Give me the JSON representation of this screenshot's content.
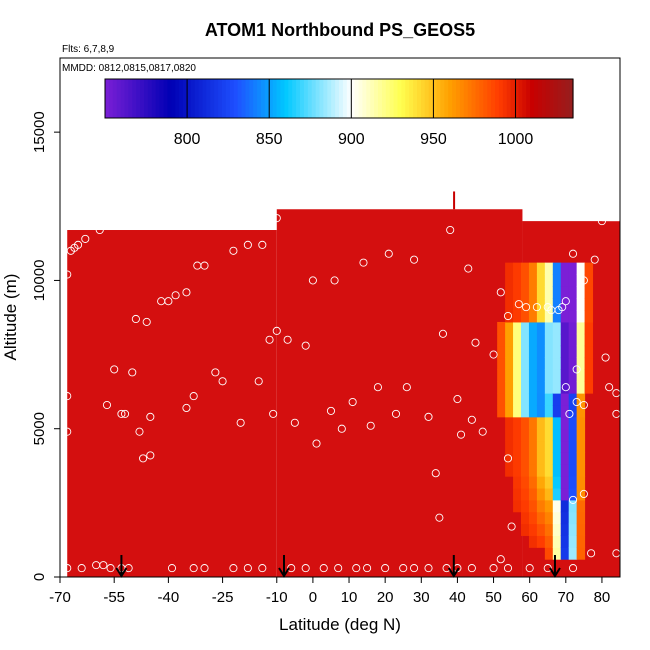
{
  "chart_data": {
    "type": "heatmap",
    "title": "ATOM1 Northbound PS_GEOS5",
    "subtitle_flights": "Flts: 6,7,8,9",
    "subtitle_dates": "MMDD: 0812,0815,0817,0820",
    "xlabel": "Latitude (deg N)",
    "ylabel": "Altitude (m)",
    "xlim": [
      -70,
      85
    ],
    "ylim": [
      0,
      17500
    ],
    "x_ticks": [
      -70,
      -55,
      -40,
      -25,
      -10,
      0,
      10,
      20,
      30,
      40,
      50,
      60,
      70,
      80
    ],
    "x_tick_labels": [
      "-70",
      "-55",
      "-40",
      "-25",
      "-10",
      "0",
      "10",
      "20",
      "30",
      "40",
      "50",
      "60",
      "70",
      "80"
    ],
    "y_ticks": [
      0,
      5000,
      10000,
      15000
    ],
    "y_tick_labels": [
      "0",
      "5000",
      "10000",
      "15000"
    ],
    "colorbar": {
      "range": [
        750,
        1035
      ],
      "ticks": [
        800,
        850,
        900,
        950,
        1000
      ],
      "tick_labels": [
        "800",
        "850",
        "900",
        "950",
        "1000"
      ],
      "colors": [
        "#7b1fd6",
        "#0000b4",
        "#1e50ff",
        "#00c8ff",
        "#ffffff",
        "#ffff50",
        "#ffa000",
        "#ff3c00",
        "#c80000",
        "#961e1e"
      ]
    },
    "background_color": "#d40f0f",
    "flight_markers_lat": [
      -53,
      -8,
      39,
      67
    ],
    "observations": [
      [
        -68,
        10200
      ],
      [
        -67,
        11000
      ],
      [
        -66,
        11100
      ],
      [
        -65,
        11200
      ],
      [
        -63,
        11400
      ],
      [
        -59,
        11700
      ],
      [
        -68,
        6100
      ],
      [
        -68,
        4900
      ],
      [
        -57,
        5800
      ],
      [
        -55,
        7000
      ],
      [
        -53,
        5500
      ],
      [
        -52,
        5500
      ],
      [
        -50,
        6900
      ],
      [
        -49,
        8700
      ],
      [
        -46,
        8600
      ],
      [
        -48,
        4900
      ],
      [
        -47,
        4000
      ],
      [
        -45,
        4100
      ],
      [
        -45,
        5400
      ],
      [
        -42,
        9300
      ],
      [
        -40,
        9300
      ],
      [
        -38,
        9500
      ],
      [
        -35,
        9600
      ],
      [
        -32,
        10500
      ],
      [
        -30,
        10500
      ],
      [
        -35,
        5700
      ],
      [
        -33,
        6100
      ],
      [
        -27,
        6900
      ],
      [
        -25,
        6600
      ],
      [
        -22,
        11000
      ],
      [
        -18,
        11200
      ],
      [
        -14,
        11200
      ],
      [
        -10,
        12100
      ],
      [
        -20,
        5200
      ],
      [
        -15,
        6600
      ],
      [
        -12,
        8000
      ],
      [
        -10,
        8300
      ],
      [
        -7,
        8000
      ],
      [
        -2,
        7800
      ],
      [
        -11,
        5500
      ],
      [
        -5,
        5200
      ],
      [
        0,
        10000
      ],
      [
        6,
        10000
      ],
      [
        1,
        4500
      ],
      [
        5,
        5600
      ],
      [
        8,
        5000
      ],
      [
        11,
        5900
      ],
      [
        14,
        10600
      ],
      [
        16,
        5100
      ],
      [
        18,
        6400
      ],
      [
        21,
        10900
      ],
      [
        23,
        5500
      ],
      [
        26,
        6400
      ],
      [
        28,
        10700
      ],
      [
        32,
        5400
      ],
      [
        34,
        3500
      ],
      [
        35,
        2000
      ],
      [
        36,
        8200
      ],
      [
        38,
        11700
      ],
      [
        40,
        6000
      ],
      [
        41,
        4800
      ],
      [
        43,
        10400
      ],
      [
        44,
        5300
      ],
      [
        45,
        7900
      ],
      [
        47,
        4900
      ],
      [
        50,
        7500
      ],
      [
        52,
        9600
      ],
      [
        54,
        8800
      ],
      [
        57,
        9200
      ],
      [
        59,
        9100
      ],
      [
        62,
        9100
      ],
      [
        65,
        9100
      ],
      [
        66,
        9000
      ],
      [
        68,
        9000
      ],
      [
        69,
        9100
      ],
      [
        70,
        9300
      ],
      [
        72,
        10900
      ],
      [
        73,
        7000
      ],
      [
        75,
        10000
      ],
      [
        70,
        6400
      ],
      [
        71,
        5500
      ],
      [
        72,
        2600
      ],
      [
        73,
        5900
      ],
      [
        75,
        5800
      ],
      [
        75,
        2800
      ],
      [
        78,
        10700
      ],
      [
        80,
        12000
      ],
      [
        81,
        7400
      ],
      [
        82,
        6400
      ],
      [
        84,
        6200
      ],
      [
        84,
        5500
      ],
      [
        54,
        4000
      ],
      [
        55,
        1700
      ],
      [
        52,
        600
      ],
      [
        -68,
        300
      ],
      [
        -64,
        300
      ],
      [
        -60,
        400
      ],
      [
        -58,
        400
      ],
      [
        -56,
        300
      ],
      [
        -53,
        300
      ],
      [
        -51,
        300
      ],
      [
        -39,
        300
      ],
      [
        -33,
        300
      ],
      [
        -30,
        300
      ],
      [
        -22,
        300
      ],
      [
        -18,
        300
      ],
      [
        -14,
        300
      ],
      [
        -6,
        300
      ],
      [
        -2,
        300
      ],
      [
        3,
        300
      ],
      [
        7,
        300
      ],
      [
        12,
        300
      ],
      [
        15,
        300
      ],
      [
        20,
        300
      ],
      [
        25,
        300
      ],
      [
        28,
        300
      ],
      [
        32,
        300
      ],
      [
        37,
        300
      ],
      [
        40,
        300
      ],
      [
        44,
        300
      ],
      [
        50,
        300
      ],
      [
        54,
        300
      ],
      [
        60,
        300
      ],
      [
        65,
        300
      ],
      [
        72,
        300
      ],
      [
        77,
        800
      ],
      [
        84,
        800
      ]
    ]
  }
}
